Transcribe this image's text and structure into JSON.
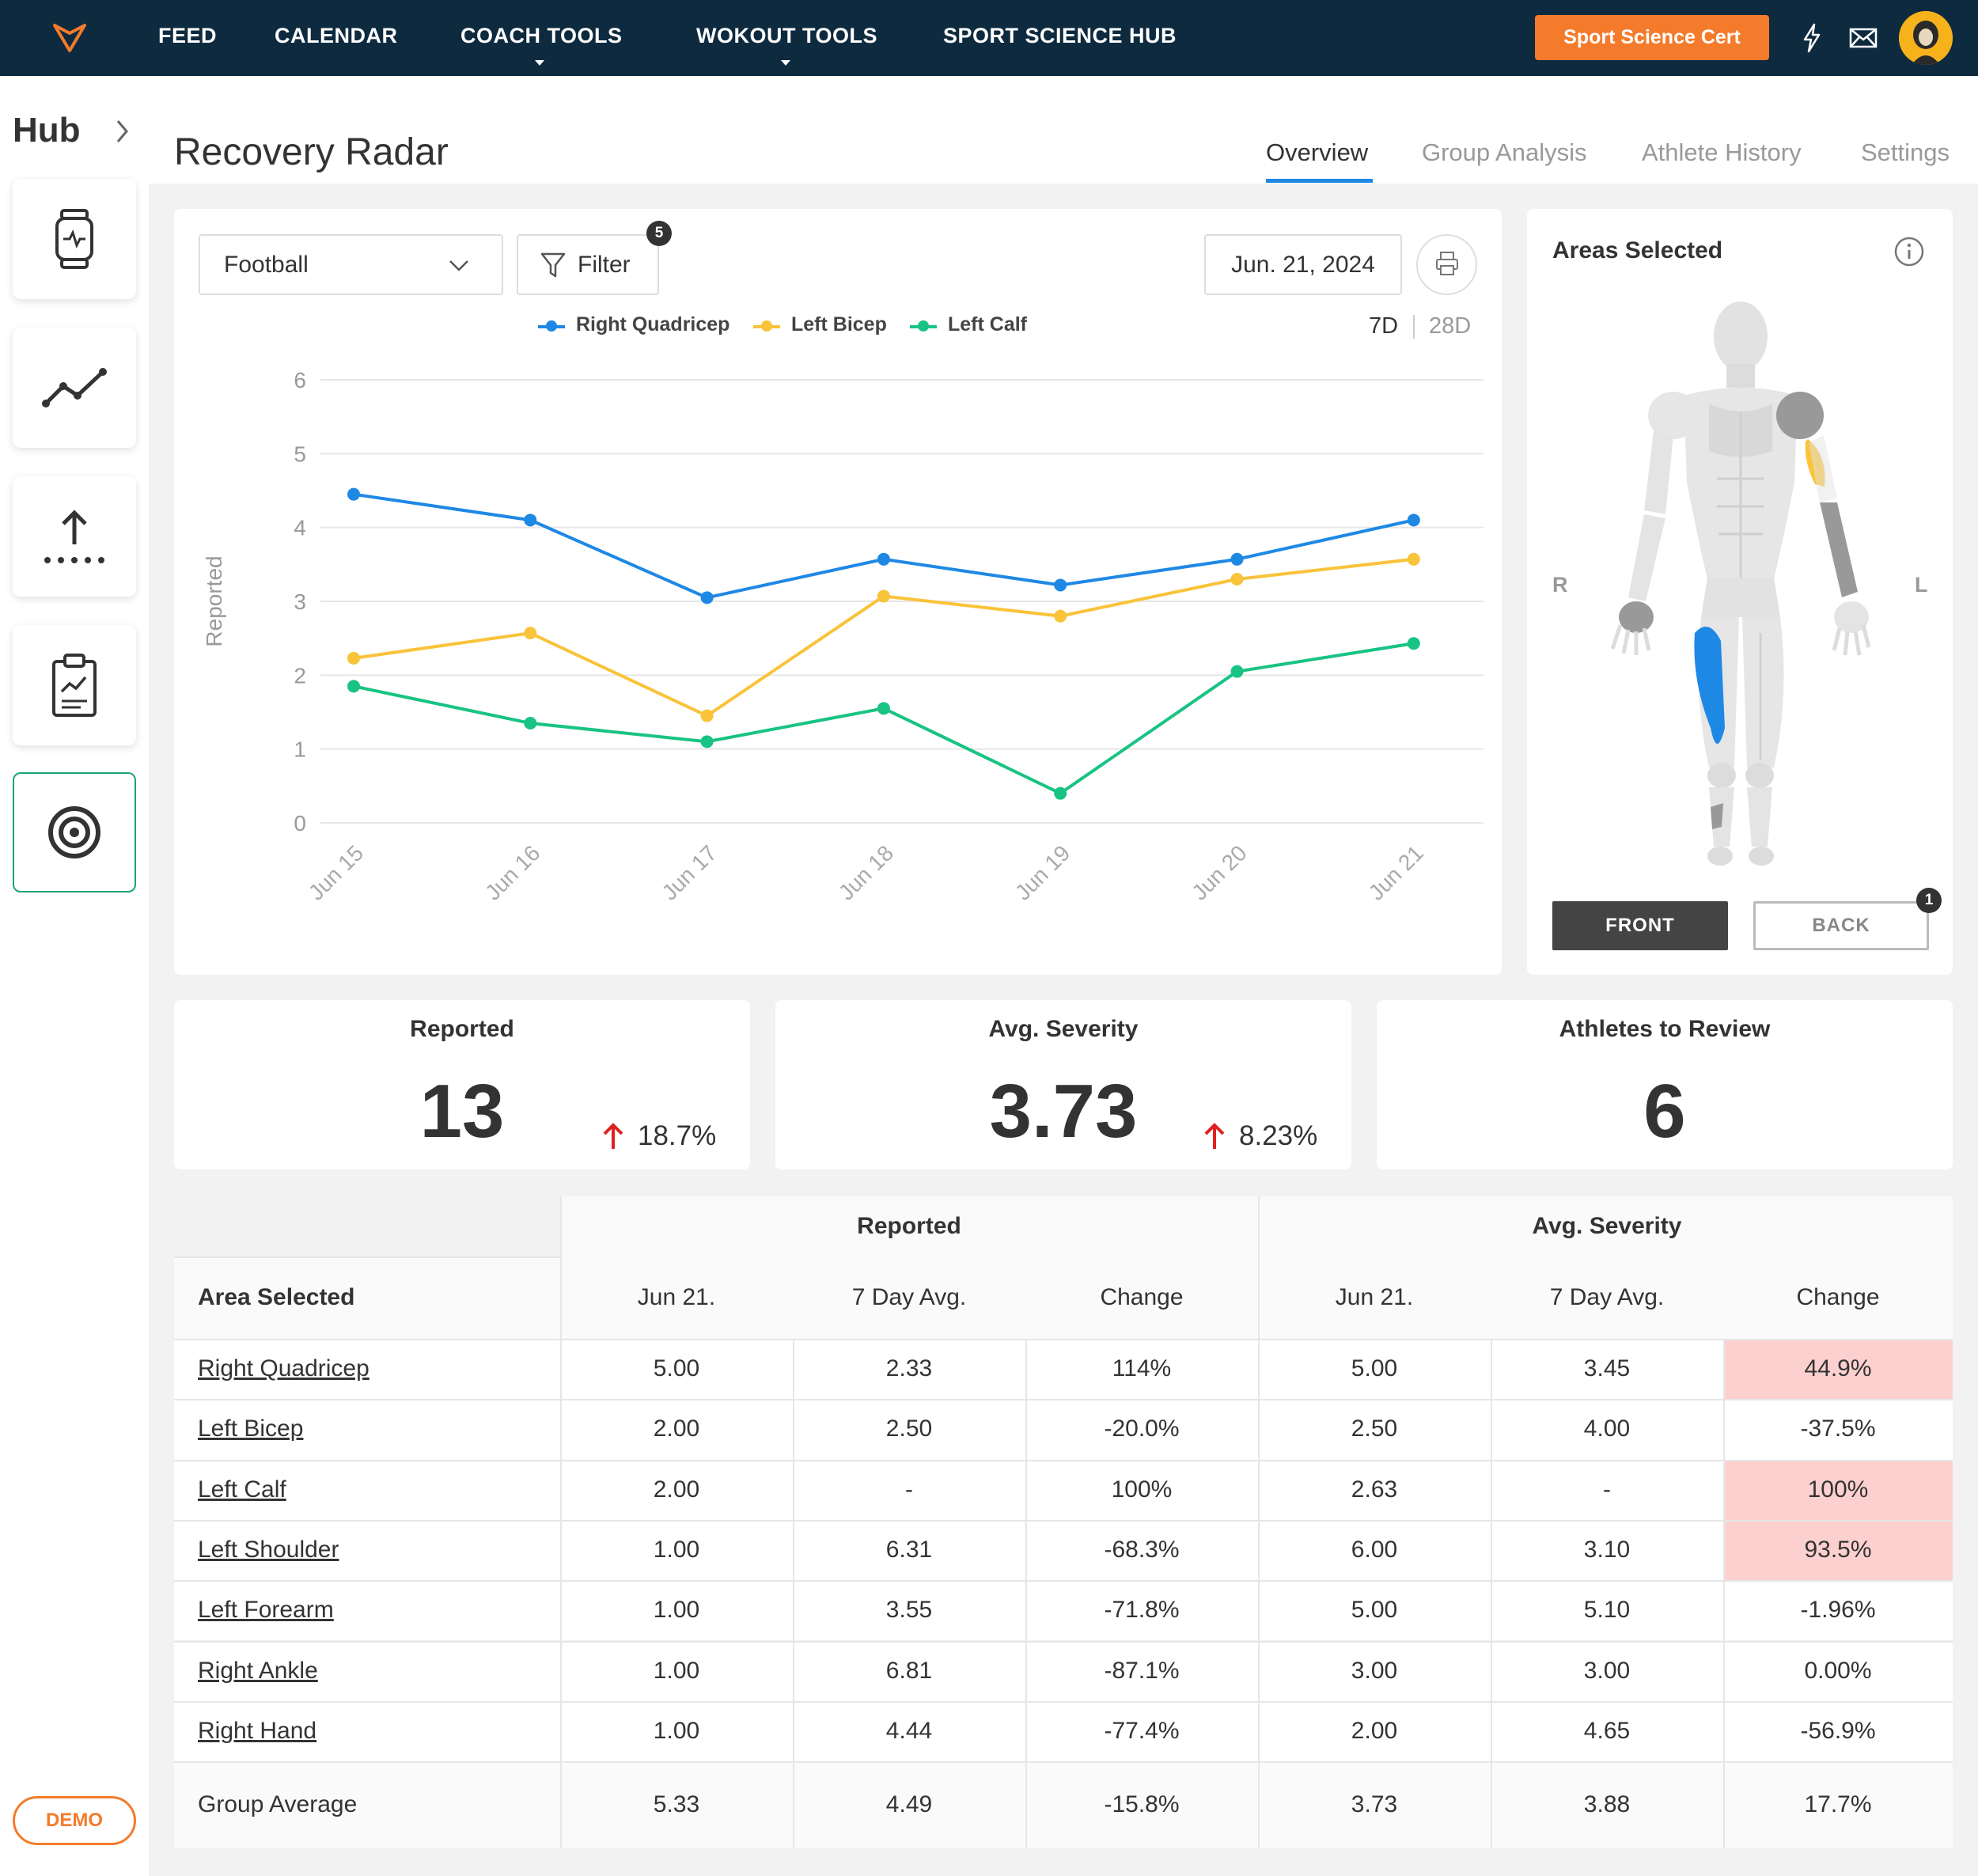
{
  "nav": {
    "items": [
      {
        "label": "FEED",
        "has_caret": false
      },
      {
        "label": "CALENDAR",
        "has_caret": false
      },
      {
        "label": "COACH TOOLS",
        "has_caret": true
      },
      {
        "label": "WOKOUT TOOLS",
        "has_caret": true
      },
      {
        "label": "SPORT SCIENCE HUB",
        "has_caret": false
      }
    ],
    "cert_button": "Sport Science Cert",
    "icons": [
      "logo-icon",
      "bolt-icon",
      "mail-icon",
      "avatar"
    ]
  },
  "sidebar": {
    "title": "Hub",
    "tiles": [
      "smartwatch-icon",
      "trend-line-icon",
      "upload-icon",
      "clipboard-chart-icon",
      "target-icon"
    ],
    "active_tile": "target-icon",
    "demo_label": "DEMO"
  },
  "header": {
    "title": "Recovery Radar",
    "tabs": [
      {
        "label": "Overview",
        "active": true
      },
      {
        "label": "Group Analysis",
        "active": false
      },
      {
        "label": "Athlete History",
        "active": false
      },
      {
        "label": "Settings",
        "active": false
      }
    ]
  },
  "controls": {
    "sport": "Football",
    "filter_label": "Filter",
    "filter_count": "5",
    "date": "Jun. 21, 2024",
    "range_options": [
      "7D",
      "28D"
    ],
    "range_selected": "7D"
  },
  "chart_data": {
    "type": "line",
    "x": [
      "Jun 15",
      "Jun 16",
      "Jun 17",
      "Jun 18",
      "Jun 19",
      "Jun 20",
      "Jun 21"
    ],
    "series": [
      {
        "name": "Right Quadricep",
        "color": "#1e88e5",
        "values": [
          4.45,
          4.1,
          3.05,
          3.57,
          3.22,
          3.57,
          4.1
        ]
      },
      {
        "name": "Left Bicep",
        "color": "#f9c33a",
        "values": [
          2.23,
          2.57,
          1.45,
          3.07,
          2.8,
          3.3,
          3.57
        ]
      },
      {
        "name": "Left Calf",
        "color": "#18c383",
        "values": [
          1.85,
          1.35,
          1.1,
          1.55,
          0.4,
          2.05,
          2.43
        ]
      }
    ],
    "ylabel": "Reported",
    "xlabel": "",
    "ylim": [
      0,
      6
    ],
    "yticks": [
      "0",
      "1",
      "2",
      "3",
      "4",
      "5",
      "6"
    ],
    "grid": true,
    "legend": "top-center"
  },
  "body_map": {
    "title": "Areas Selected",
    "right_label": "R",
    "left_label": "L",
    "front_label": "FRONT",
    "back_label": "BACK",
    "back_badge": "1",
    "highlight_colors": {
      "right_quadricep": "#1e88e5",
      "left_bicep": "#f9c33a",
      "other": "#999999"
    }
  },
  "stats": [
    {
      "title": "Reported",
      "value": "13",
      "change": "18.7%",
      "trend": "up"
    },
    {
      "title": "Avg. Severity",
      "value": "3.73",
      "change": "8.23%",
      "trend": "up"
    },
    {
      "title": "Athletes to Review",
      "value": "6",
      "change": "",
      "trend": "none"
    }
  ],
  "table": {
    "group_headers": [
      "Reported",
      "Avg. Severity"
    ],
    "columns": [
      "Area Selected",
      "Jun 21.",
      "7 Day Avg.",
      "Change",
      "Jun 21.",
      "7 Day Avg.",
      "Change"
    ],
    "rows": [
      {
        "area": "Right Quadricep",
        "cells": [
          "5.00",
          "2.33",
          "114%",
          "5.00",
          "3.45",
          "44.9%"
        ],
        "flag": true
      },
      {
        "area": "Left Bicep",
        "cells": [
          "2.00",
          "2.50",
          "-20.0%",
          "2.50",
          "4.00",
          "-37.5%"
        ],
        "flag": false
      },
      {
        "area": "Left Calf",
        "cells": [
          "2.00",
          "-",
          "100%",
          "2.63",
          "-",
          "100%"
        ],
        "flag": true
      },
      {
        "area": "Left Shoulder",
        "cells": [
          "1.00",
          "6.31",
          "-68.3%",
          "6.00",
          "3.10",
          "93.5%"
        ],
        "flag": true
      },
      {
        "area": "Left Forearm",
        "cells": [
          "1.00",
          "3.55",
          "-71.8%",
          "5.00",
          "5.10",
          "-1.96%"
        ],
        "flag": false
      },
      {
        "area": "Right Ankle",
        "cells": [
          "1.00",
          "6.81",
          "-87.1%",
          "3.00",
          "3.00",
          "0.00%"
        ],
        "flag": false
      },
      {
        "area": "Right Hand",
        "cells": [
          "1.00",
          "4.44",
          "-77.4%",
          "2.00",
          "4.65",
          "-56.9%"
        ],
        "flag": false
      }
    ],
    "footer": {
      "area": "Group Average",
      "cells": [
        "5.33",
        "4.49",
        "-15.8%",
        "3.73",
        "3.88",
        "17.7%"
      ]
    },
    "flag_color": "#fdd0d0"
  }
}
